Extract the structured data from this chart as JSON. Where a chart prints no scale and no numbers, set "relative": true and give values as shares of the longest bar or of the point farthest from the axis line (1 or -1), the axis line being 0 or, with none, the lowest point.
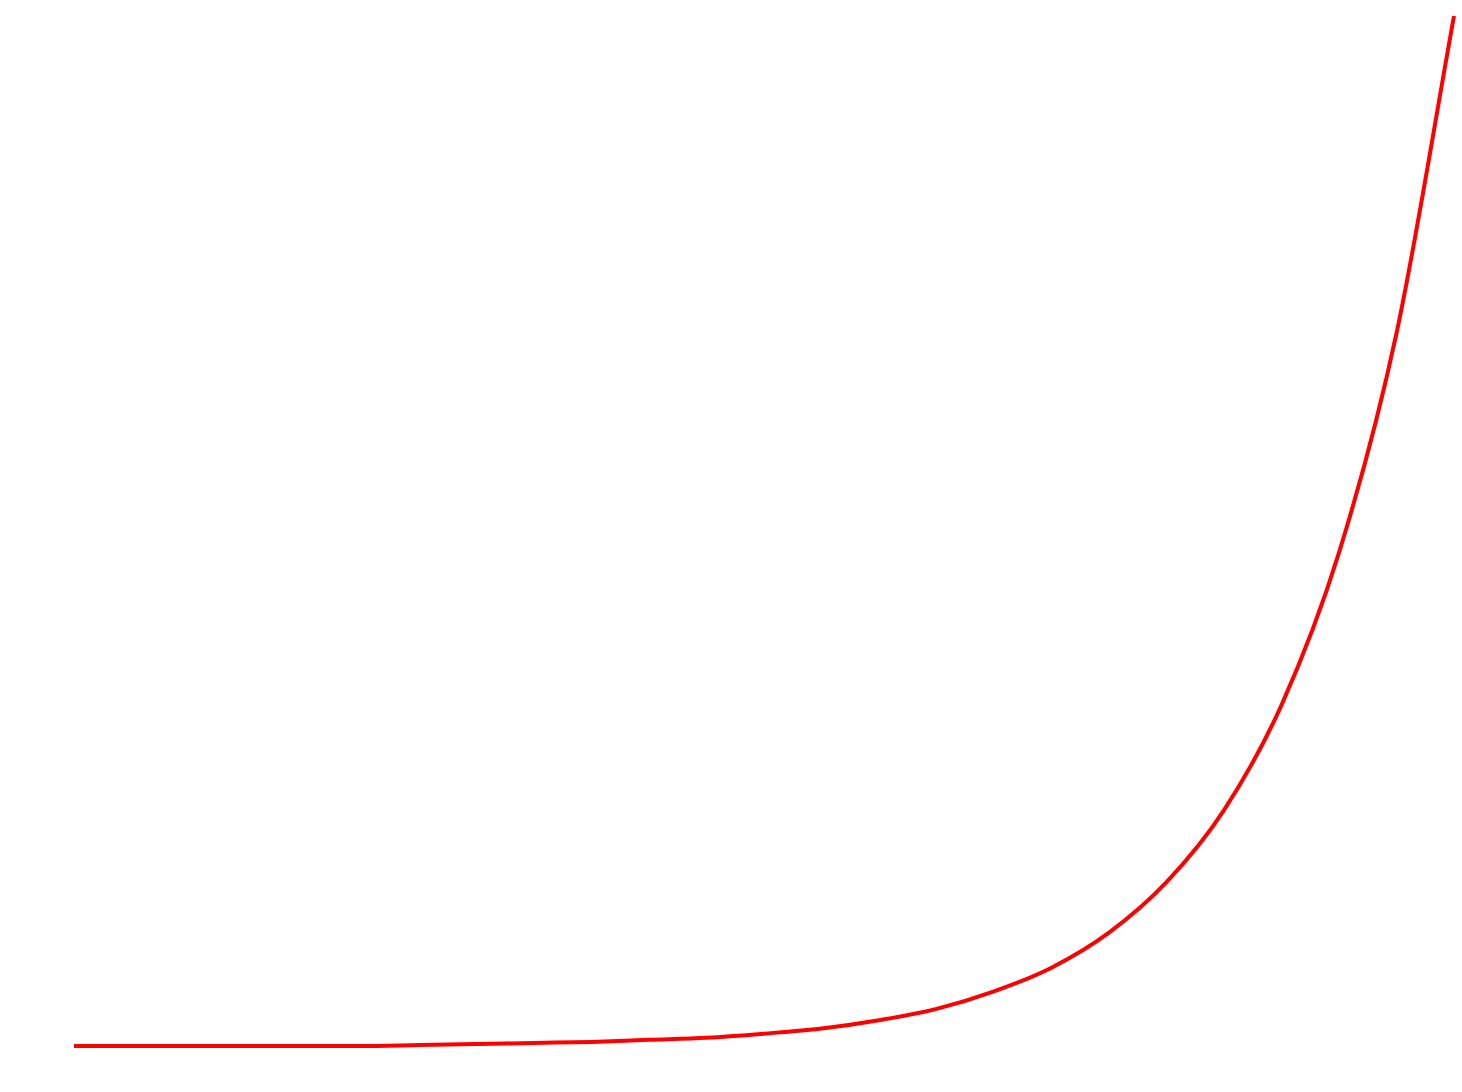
{
  "chart_data": {
    "type": "line",
    "relative": true,
    "color": "#ff0000",
    "categories": [
      null,
      null,
      null,
      null,
      null,
      null,
      null,
      null,
      null,
      null,
      null,
      null,
      null,
      null,
      null,
      null,
      null,
      null,
      null,
      null,
      null,
      null,
      null,
      null,
      null
    ],
    "values": [
      0,
      0,
      0,
      0,
      0,
      0,
      0.001,
      0.002,
      0.003,
      0.004,
      0.006,
      0.008,
      0.012,
      0.017,
      0.025,
      0.036,
      0.053,
      0.076,
      0.11,
      0.159,
      0.229,
      0.331,
      0.479,
      0.692,
      1
    ]
  }
}
